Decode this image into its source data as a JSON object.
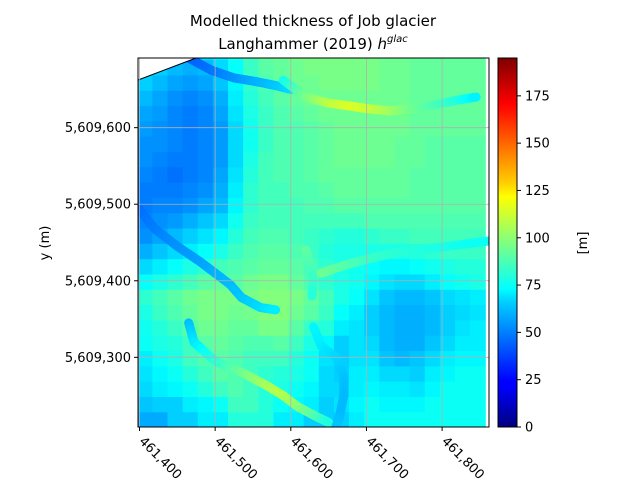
{
  "chart_data": {
    "type": "heatmap",
    "title": "Modelled thickness of Job glacier",
    "subtitle_prefix": "Langhammer (2019) ",
    "subtitle_symbol": "h",
    "subtitle_superscript": "glac",
    "xlabel": "",
    "ylabel": "y (m)",
    "colorbar_label": "[m]",
    "colormap": "jet",
    "xlim": [
      461398,
      461862
    ],
    "ylim": [
      5609209,
      5609691
    ],
    "x_ticks": [
      461400,
      461500,
      461600,
      461700,
      461800
    ],
    "x_tick_labels": [
      "461,400",
      "461,500",
      "461,600",
      "461,700",
      "461,800"
    ],
    "y_ticks": [
      5609300,
      5609400,
      5609500,
      5609600
    ],
    "y_tick_labels": [
      "5,609,300",
      "5,609,400",
      "5,609,500",
      "5,609,600"
    ],
    "color_range": [
      0,
      195
    ],
    "colorbar_ticks": [
      0,
      25,
      50,
      75,
      100,
      125,
      150,
      175
    ],
    "grid": true,
    "cell_size_m": 20,
    "grid_origin": [
      461397,
      5609209
    ],
    "background_rows_from_bottom": [
      [
        57,
        57,
        64,
        64,
        70,
        70,
        80,
        80,
        80,
        70,
        70,
        64,
        64,
        64,
        70,
        75,
        75,
        75,
        75,
        75,
        75,
        75,
        75
      ],
      [
        62,
        64,
        64,
        70,
        72,
        75,
        85,
        85,
        80,
        75,
        72,
        70,
        64,
        68,
        72,
        75,
        72,
        72,
        72,
        75,
        75,
        75,
        75
      ],
      [
        66,
        70,
        72,
        75,
        80,
        85,
        88,
        85,
        80,
        78,
        75,
        72,
        66,
        66,
        70,
        72,
        70,
        70,
        68,
        72,
        75,
        75,
        75
      ],
      [
        68,
        72,
        75,
        80,
        85,
        90,
        88,
        85,
        82,
        80,
        78,
        75,
        66,
        64,
        70,
        70,
        66,
        66,
        64,
        70,
        72,
        75,
        75
      ],
      [
        70,
        75,
        78,
        85,
        88,
        90,
        88,
        85,
        85,
        85,
        80,
        75,
        68,
        64,
        68,
        68,
        62,
        60,
        62,
        66,
        70,
        72,
        72
      ],
      [
        75,
        78,
        80,
        85,
        90,
        92,
        90,
        88,
        88,
        90,
        85,
        78,
        72,
        64,
        68,
        66,
        60,
        58,
        58,
        62,
        66,
        70,
        70
      ],
      [
        76,
        80,
        84,
        90,
        94,
        94,
        92,
        92,
        96,
        96,
        90,
        84,
        80,
        70,
        68,
        64,
        60,
        58,
        58,
        60,
        64,
        68,
        70
      ],
      [
        78,
        84,
        88,
        92,
        96,
        96,
        94,
        95,
        98,
        98,
        94,
        90,
        84,
        74,
        70,
        64,
        60,
        58,
        58,
        60,
        64,
        66,
        68
      ],
      [
        82,
        86,
        90,
        94,
        96,
        96,
        96,
        96,
        98,
        98,
        96,
        92,
        86,
        78,
        74,
        68,
        62,
        60,
        60,
        62,
        66,
        68,
        70
      ],
      [
        74,
        78,
        82,
        86,
        90,
        92,
        90,
        94,
        96,
        96,
        92,
        88,
        82,
        78,
        76,
        72,
        68,
        66,
        66,
        70,
        74,
        76,
        78
      ],
      [
        66,
        70,
        74,
        78,
        82,
        86,
        88,
        90,
        92,
        92,
        90,
        86,
        82,
        78,
        76,
        74,
        72,
        72,
        74,
        76,
        78,
        80,
        80
      ],
      [
        58,
        62,
        66,
        70,
        74,
        78,
        84,
        88,
        90,
        90,
        88,
        84,
        80,
        78,
        78,
        78,
        78,
        78,
        80,
        82,
        84,
        84,
        84
      ],
      [
        52,
        56,
        60,
        64,
        68,
        72,
        80,
        86,
        88,
        88,
        86,
        84,
        82,
        80,
        80,
        82,
        84,
        84,
        86,
        86,
        86,
        86,
        86
      ],
      [
        50,
        52,
        54,
        58,
        62,
        66,
        76,
        84,
        86,
        86,
        86,
        86,
        86,
        86,
        86,
        88,
        88,
        88,
        88,
        88,
        88,
        88,
        88
      ],
      [
        48,
        50,
        50,
        52,
        56,
        60,
        72,
        82,
        86,
        86,
        86,
        88,
        88,
        90,
        90,
        90,
        90,
        90,
        90,
        90,
        90,
        90,
        90
      ],
      [
        48,
        48,
        48,
        50,
        52,
        58,
        70,
        82,
        86,
        86,
        88,
        88,
        90,
        92,
        92,
        92,
        92,
        92,
        90,
        90,
        90,
        90,
        90
      ],
      [
        50,
        48,
        46,
        48,
        50,
        56,
        68,
        80,
        86,
        88,
        88,
        90,
        92,
        92,
        92,
        92,
        92,
        92,
        90,
        90,
        90,
        90,
        90
      ],
      [
        52,
        50,
        48,
        48,
        50,
        54,
        66,
        78,
        86,
        88,
        88,
        90,
        92,
        94,
        94,
        94,
        94,
        92,
        92,
        90,
        90,
        90,
        90
      ],
      [
        52,
        52,
        50,
        48,
        50,
        54,
        66,
        76,
        84,
        88,
        88,
        90,
        92,
        94,
        94,
        94,
        94,
        92,
        92,
        90,
        90,
        90,
        90
      ],
      [
        54,
        52,
        50,
        48,
        50,
        54,
        66,
        76,
        84,
        88,
        88,
        90,
        92,
        94,
        94,
        94,
        94,
        94,
        92,
        92,
        92,
        92,
        92
      ],
      [
        56,
        54,
        50,
        48,
        50,
        56,
        68,
        78,
        84,
        88,
        90,
        92,
        94,
        94,
        94,
        94,
        94,
        94,
        92,
        92,
        92,
        92,
        92
      ],
      [
        60,
        56,
        52,
        50,
        52,
        58,
        70,
        80,
        86,
        90,
        92,
        94,
        94,
        94,
        94,
        94,
        94,
        94,
        92,
        92,
        92,
        92,
        92
      ],
      [
        64,
        60,
        56,
        54,
        56,
        62,
        72,
        82,
        88,
        92,
        94,
        94,
        96,
        96,
        96,
        96,
        94,
        94,
        92,
        92,
        92,
        92,
        92
      ],
      [
        70,
        64,
        60,
        58,
        60,
        66,
        74,
        84,
        90,
        92,
        94,
        96,
        96,
        96,
        96,
        96,
        94,
        94,
        92,
        92,
        92,
        92,
        92
      ],
      [
        76,
        70,
        66,
        64,
        66,
        70,
        78,
        86,
        92,
        94,
        96,
        96,
        96,
        96,
        96,
        96,
        94,
        94,
        92,
        92,
        92,
        92,
        92
      ]
    ],
    "flowlines": [
      {
        "points": [
          [
            461398,
            5609495
          ],
          [
            461420,
            5609468
          ],
          [
            461450,
            5609445
          ],
          [
            461480,
            5609425
          ],
          [
            461500,
            5609410
          ],
          [
            461520,
            5609395
          ],
          [
            461535,
            5609378
          ],
          [
            461560,
            5609365
          ],
          [
            461580,
            5609362
          ]
        ],
        "values": [
          45,
          48,
          52,
          55,
          58,
          60,
          62,
          66,
          70
        ]
      },
      {
        "points": [
          [
            461465,
            5609345
          ],
          [
            461472,
            5609320
          ],
          [
            461500,
            5609295
          ],
          [
            461540,
            5609278
          ],
          [
            461570,
            5609262
          ],
          [
            461590,
            5609250
          ],
          [
            461610,
            5609235
          ],
          [
            461635,
            5609222
          ],
          [
            461650,
            5609215
          ]
        ],
        "values": [
          60,
          68,
          80,
          95,
          105,
          108,
          100,
          88,
          78
        ]
      },
      {
        "points": [
          [
            461630,
            5609340
          ],
          [
            461640,
            5609315
          ],
          [
            461660,
            5609300
          ],
          [
            461670,
            5609275
          ],
          [
            461670,
            5609250
          ],
          [
            461665,
            5609225
          ],
          [
            461660,
            5609210
          ]
        ],
        "values": [
          72,
          70,
          66,
          62,
          60,
          60,
          62
        ]
      },
      {
        "points": [
          [
            461640,
            5609410
          ],
          [
            461670,
            5609420
          ],
          [
            461700,
            5609428
          ],
          [
            461730,
            5609435
          ],
          [
            461760,
            5609440
          ],
          [
            461800,
            5609444
          ],
          [
            461830,
            5609448
          ],
          [
            461862,
            5609452
          ]
        ],
        "values": [
          95,
          90,
          85,
          82,
          80,
          78,
          76,
          75
        ]
      },
      {
        "points": [
          [
            461620,
            5609440
          ],
          [
            461625,
            5609420
          ],
          [
            461630,
            5609400
          ],
          [
            461628,
            5609380
          ]
        ],
        "values": [
          92,
          88,
          84,
          80
        ]
      },
      {
        "points": [
          [
            461465,
            5609691
          ],
          [
            461495,
            5609675
          ],
          [
            461525,
            5609665
          ],
          [
            461555,
            5609660
          ],
          [
            461580,
            5609655
          ],
          [
            461600,
            5609650
          ]
        ],
        "values": [
          42,
          46,
          52,
          58,
          62,
          66
        ]
      },
      {
        "points": [
          [
            461590,
            5609662
          ],
          [
            461620,
            5609640
          ],
          [
            461650,
            5609632
          ],
          [
            461680,
            5609628
          ],
          [
            461700,
            5609625
          ],
          [
            461730,
            5609622
          ],
          [
            461760,
            5609624
          ],
          [
            461790,
            5609630
          ],
          [
            461820,
            5609636
          ],
          [
            461845,
            5609640
          ]
        ],
        "values": [
          75,
          95,
          108,
          115,
          112,
          105,
          95,
          88,
          80,
          70
        ]
      }
    ]
  }
}
